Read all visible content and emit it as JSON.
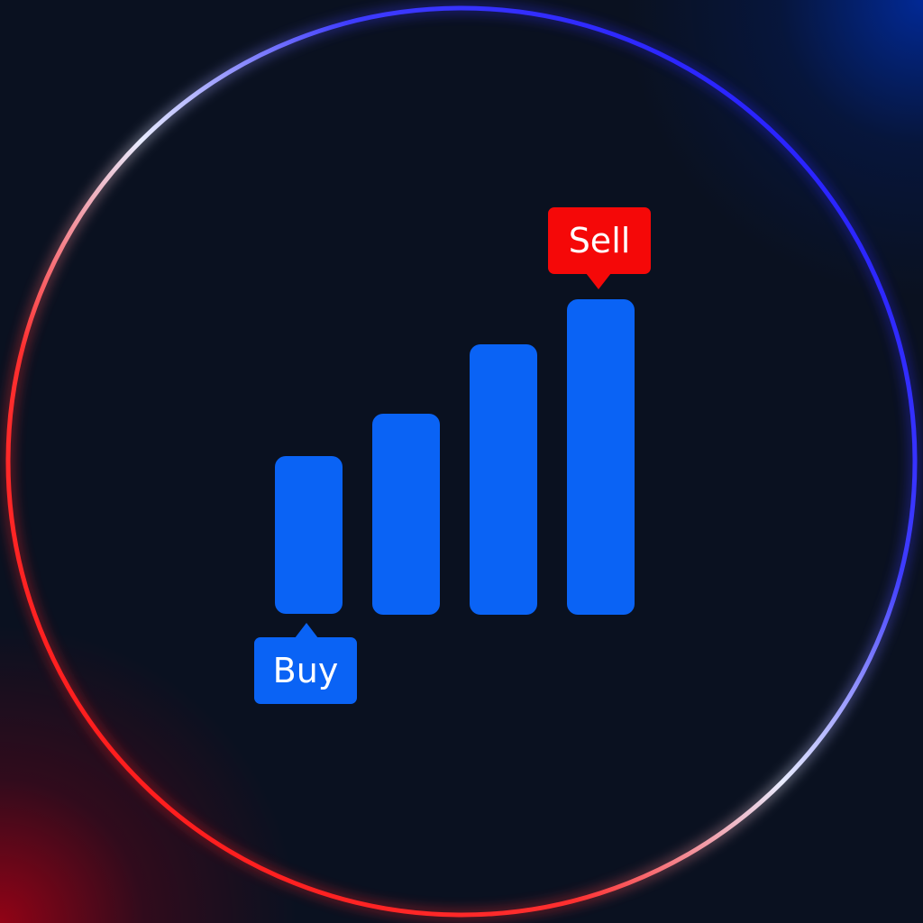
{
  "badges": {
    "buy_label": "Buy",
    "sell_label": "Sell"
  },
  "colors": {
    "background": "#0a1120",
    "bar": "#0a63f5",
    "buy_badge": "#0a63f5",
    "sell_badge": "#f50808",
    "ring_blue": "#1f17ff",
    "ring_white": "#e8ecff",
    "ring_red": "#ff1414"
  },
  "icons": [
    "signal-bars-icon",
    "gradient-ring-icon",
    "buy-badge-icon",
    "sell-badge-icon"
  ]
}
